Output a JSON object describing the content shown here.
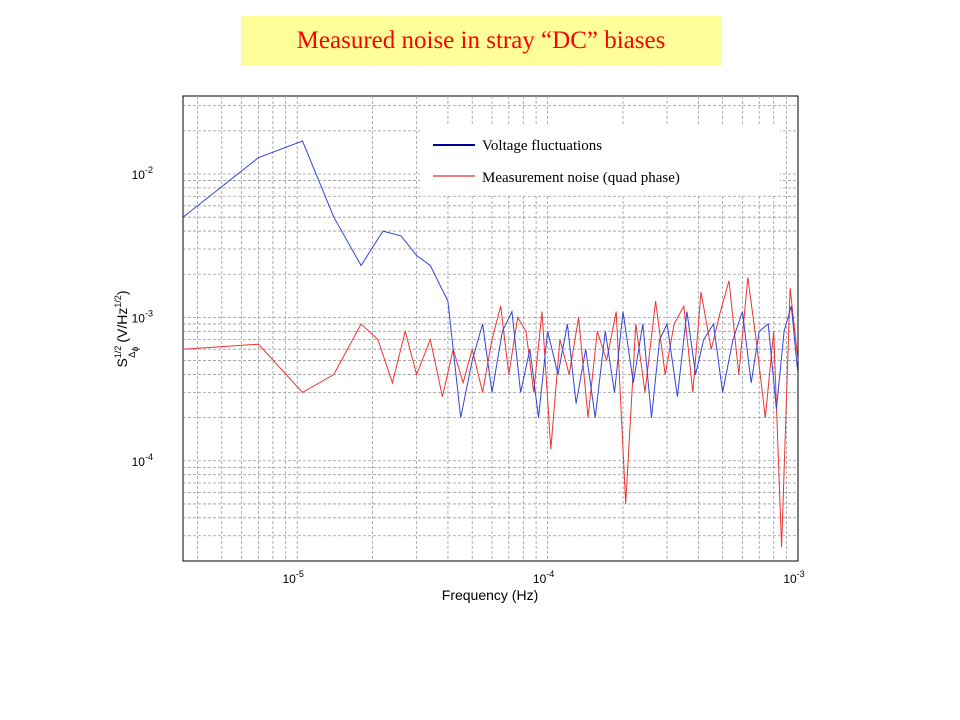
{
  "title": "Measured noise in stray “DC” biases",
  "chart_data": {
    "type": "line",
    "xscale": "log",
    "yscale": "log",
    "xlim": [
      3.5e-06,
      0.001
    ],
    "ylim": [
      2e-05,
      0.035
    ],
    "grid": true,
    "grid_style": "dashed",
    "legend_position": "top-right",
    "xlabel": "Frequency (Hz)",
    "ylabel": {
      "base": "S",
      "sup": "1/2",
      "sub": "Δ",
      "subsub": "ϕ",
      "unit": "(V/Hz",
      "unit_sup": "1/2",
      "unit_close": ")"
    },
    "x_ticks": [
      {
        "base": "10",
        "exp": "-5",
        "value": 1e-05
      },
      {
        "base": "10",
        "exp": "-4",
        "value": 0.0001
      },
      {
        "base": "10",
        "exp": "-3",
        "value": 0.001
      }
    ],
    "y_ticks": [
      {
        "base": "10",
        "exp": "-2",
        "value": 0.01
      },
      {
        "base": "10",
        "exp": "-3",
        "value": 0.001
      },
      {
        "base": "10",
        "exp": "-4",
        "value": 0.0001
      }
    ],
    "series": [
      {
        "name": "Voltage fluctuations",
        "color": "#3344dd",
        "legend_color": "#000099",
        "x": [
          3.5e-06,
          7e-06,
          1.05e-05,
          1.4e-05,
          1.8e-05,
          2.2e-05,
          2.6e-05,
          3e-05,
          3.4e-05,
          4e-05,
          4.5e-05,
          5e-05,
          5.5e-05,
          6e-05,
          6.6e-05,
          7.2e-05,
          7.8e-05,
          8.5e-05,
          9.2e-05,
          0.0001,
          0.00011,
          0.00012,
          0.00013,
          0.000142,
          0.000155,
          0.00017,
          0.000185,
          0.0002,
          0.00022,
          0.00024,
          0.00026,
          0.00028,
          0.0003,
          0.00033,
          0.00036,
          0.00039,
          0.00042,
          0.00046,
          0.0005,
          0.00055,
          0.0006,
          0.00065,
          0.0007,
          0.00076,
          0.00082,
          0.00088,
          0.00094,
          0.001
        ],
        "y": [
          0.005,
          0.013,
          0.017,
          0.005,
          0.0023,
          0.004,
          0.0037,
          0.0027,
          0.0023,
          0.0013,
          0.0002,
          0.0005,
          0.0009,
          0.0003,
          0.0008,
          0.0011,
          0.0003,
          0.0006,
          0.0002,
          0.0008,
          0.0004,
          0.0009,
          0.00025,
          0.0006,
          0.0002,
          0.0008,
          0.0003,
          0.0011,
          0.00035,
          0.0009,
          0.0002,
          0.0007,
          0.0009,
          0.00028,
          0.0011,
          0.0004,
          0.0007,
          0.0009,
          0.0003,
          0.0007,
          0.0011,
          0.00035,
          0.0008,
          0.0009,
          0.00023,
          0.0008,
          0.0012,
          0.0004
        ]
      },
      {
        "name": "Measurement noise (quad phase)",
        "color": "#ee3333",
        "legend_color": "#cc0000",
        "x": [
          3.5e-06,
          7e-06,
          1.05e-05,
          1.4e-05,
          1.8e-05,
          2.1e-05,
          2.4e-05,
          2.7e-05,
          3e-05,
          3.4e-05,
          3.8e-05,
          4.2e-05,
          4.6e-05,
          5e-05,
          5.5e-05,
          6e-05,
          6.5e-05,
          7e-05,
          7.6e-05,
          8.2e-05,
          8.8e-05,
          9.5e-05,
          0.000103,
          0.000112,
          0.000122,
          0.000133,
          0.000145,
          0.000158,
          0.000172,
          0.000188,
          0.000205,
          0.000225,
          0.000245,
          0.00027,
          0.000295,
          0.00032,
          0.00035,
          0.00038,
          0.00041,
          0.00045,
          0.00049,
          0.00053,
          0.00058,
          0.00063,
          0.00068,
          0.00074,
          0.0008,
          0.00086,
          0.00093,
          0.001
        ],
        "y": [
          0.0006,
          0.00065,
          0.0003,
          0.0004,
          0.0009,
          0.0007,
          0.00035,
          0.0008,
          0.0004,
          0.0007,
          0.00028,
          0.0006,
          0.00035,
          0.0006,
          0.0003,
          0.0007,
          0.0012,
          0.0004,
          0.001,
          0.0008,
          0.0003,
          0.0011,
          0.00012,
          0.0007,
          0.0004,
          0.001,
          0.0002,
          0.0008,
          0.0005,
          0.0011,
          5e-05,
          0.0009,
          0.0003,
          0.0013,
          0.0004,
          0.0009,
          0.0012,
          0.0003,
          0.0015,
          0.0006,
          0.0011,
          0.0018,
          0.0004,
          0.0019,
          0.0007,
          0.0002,
          0.0008,
          2.5e-05,
          0.0016,
          0.0005
        ]
      }
    ]
  }
}
